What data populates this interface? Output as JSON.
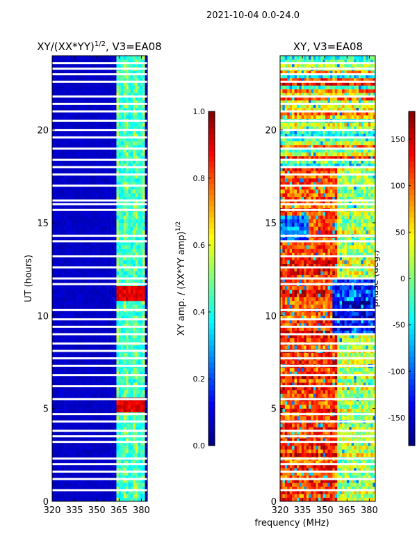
{
  "chart_data": [
    {
      "type": "heatmap",
      "suptitle": "2021-10-04 0.0-24.0",
      "title": "XY/(XX*YY)",
      "title_sup": "1/2",
      "title_suffix": ", V3=EA08",
      "xlabel": "",
      "ylabel": "UT (hours)",
      "xlim": [
        320,
        384
      ],
      "ylim": [
        0,
        24
      ],
      "xticks": [
        "320",
        "335",
        "350",
        "365",
        "380"
      ],
      "yticks": [
        "0",
        "5",
        "10",
        "15",
        "20"
      ],
      "colormap": "jet",
      "colorbar": {
        "label": "XY amp. / (XX*YY amp)",
        "label_sup": "1/2",
        "range": [
          0,
          1
        ],
        "ticks": [
          "0.0",
          "0.2",
          "0.4",
          "0.6",
          "0.8",
          "1.0"
        ]
      },
      "description_values": {
        "background_level": 0.05,
        "band_365_382_level": 0.35,
        "peak_hours": [
          5.2,
          11.2
        ],
        "peak_level": 0.85
      }
    },
    {
      "type": "heatmap",
      "title": "XY, V3=EA08",
      "xlabel": "frequency (MHz)",
      "ylabel": "",
      "xlim": [
        320,
        384
      ],
      "ylim": [
        0,
        24
      ],
      "xticks": [
        "320",
        "335",
        "350",
        "365",
        "380"
      ],
      "yticks": [
        "0",
        "5",
        "10",
        "15",
        "20"
      ],
      "colormap": "jet",
      "colorbar": {
        "label": "phase (deg.)",
        "range": [
          -180,
          180
        ],
        "ticks": [
          "-150",
          "-100",
          "-50",
          "0",
          "50",
          "100",
          "150"
        ]
      }
    }
  ],
  "flagged_hours": [
    0.6,
    1.2,
    1.6,
    2.0,
    2.3,
    3.2,
    3.5,
    3.8,
    4.3,
    4.7,
    5.5,
    6.2,
    6.8,
    7.3,
    7.7,
    8.1,
    8.5,
    9.0,
    9.4,
    9.8,
    10.3,
    11.7,
    12.0,
    12.6,
    13.2,
    14.0,
    14.3,
    15.7,
    16.0,
    16.2,
    17.0,
    17.6,
    18.0,
    18.4,
    19.0,
    19.6,
    20.0,
    20.5,
    21.0,
    21.4,
    21.8,
    22.6,
    23.0,
    23.3,
    23.6
  ]
}
